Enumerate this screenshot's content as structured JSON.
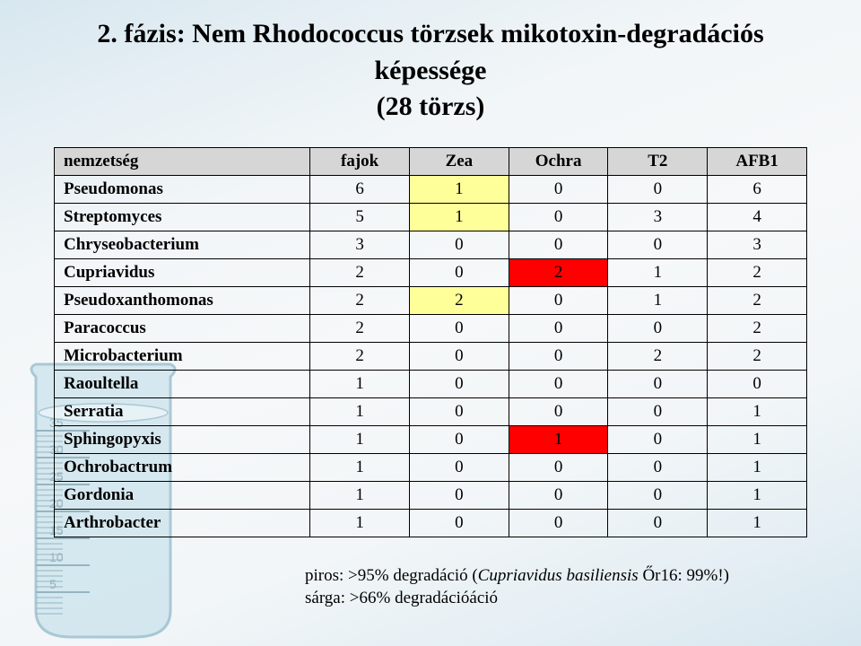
{
  "title_line1": "2. fázis: Nem Rhodococcus törzsek mikotoxin-degradációs képessége",
  "title_line2": "(28 törzs)",
  "colors": {
    "header_bg": "#d6d6d6",
    "highlight_yellow": "#ffff99",
    "highlight_red": "#ff0000",
    "border": "#000000",
    "text": "#000000"
  },
  "columns": [
    "nemzetség",
    "fajok",
    "Zea",
    "Ochra",
    "T2",
    "AFB1"
  ],
  "rows": [
    {
      "name": "Pseudomonas",
      "values": [
        "6",
        "1",
        "0",
        "0",
        "6"
      ],
      "highlights": {
        "1": "yellow"
      }
    },
    {
      "name": "Streptomyces",
      "values": [
        "5",
        "1",
        "0",
        "3",
        "4"
      ],
      "highlights": {
        "1": "yellow"
      }
    },
    {
      "name": "Chryseobacterium",
      "values": [
        "3",
        "0",
        "0",
        "0",
        "3"
      ],
      "highlights": {}
    },
    {
      "name": "Cupriavidus",
      "values": [
        "2",
        "0",
        "2",
        "1",
        "2"
      ],
      "highlights": {
        "2": "red"
      }
    },
    {
      "name": "Pseudoxanthomonas",
      "values": [
        "2",
        "2",
        "0",
        "1",
        "2"
      ],
      "highlights": {
        "1": "yellow"
      }
    },
    {
      "name": "Paracoccus",
      "values": [
        "2",
        "0",
        "0",
        "0",
        "2"
      ],
      "highlights": {}
    },
    {
      "name": "Microbacterium",
      "values": [
        "2",
        "0",
        "0",
        "2",
        "2"
      ],
      "highlights": {}
    },
    {
      "name": "Raoultella",
      "values": [
        "1",
        "0",
        "0",
        "0",
        "0"
      ],
      "highlights": {}
    },
    {
      "name": "Serratia",
      "values": [
        "1",
        "0",
        "0",
        "0",
        "1"
      ],
      "highlights": {}
    },
    {
      "name": "Sphingopyxis",
      "values": [
        "1",
        "0",
        "1",
        "0",
        "1"
      ],
      "highlights": {
        "2": "red"
      }
    },
    {
      "name": "Ochrobactrum",
      "values": [
        "1",
        "0",
        "0",
        "0",
        "1"
      ],
      "highlights": {}
    },
    {
      "name": "Gordonia",
      "values": [
        "1",
        "0",
        "0",
        "0",
        "1"
      ],
      "highlights": {}
    },
    {
      "name": "Arthrobacter",
      "values": [
        "1",
        "0",
        "0",
        "0",
        "1"
      ],
      "highlights": {}
    }
  ],
  "notes": {
    "line1_prefix": "piros:  >95% degradáció (",
    "line1_italic": "Cupriavidus basiliensis",
    "line1_suffix": " Őr16: 99%!)",
    "line2": "sárga: >66% degradációáció"
  },
  "beaker": {
    "stroke": "#6ea2b8",
    "fill": "#bcdce8",
    "tick": "#4a7f95"
  }
}
